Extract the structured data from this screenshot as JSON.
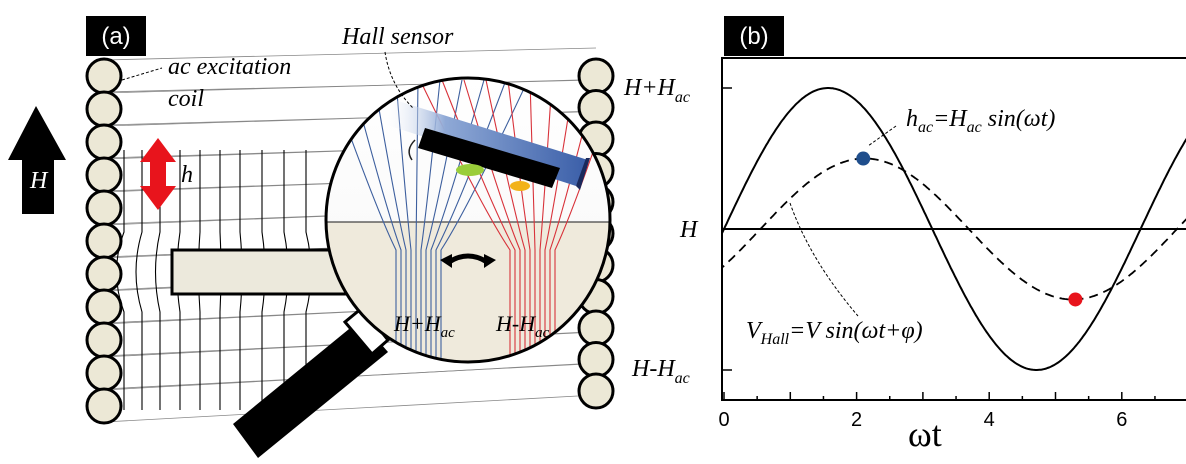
{
  "panel_a": {
    "label": "(a)",
    "coil_label_line1": "ac excitation",
    "coil_label_line2": "coil",
    "hall_sensor_label": "Hall sensor",
    "field_arrow_label": "H",
    "h_arrow_label": "h",
    "lens_label_plus": {
      "base": "H+H",
      "sub": "ac"
    },
    "lens_label_minus": {
      "base": "H-H",
      "sub": "ac"
    }
  },
  "panel_b": {
    "label": "(b)",
    "y_labels": {
      "top": {
        "base": "H+H",
        "sub": "ac"
      },
      "mid": "H",
      "bottom": {
        "base": "H-H",
        "sub": "ac"
      }
    },
    "x_axis_label": "ωt",
    "x_tick_labels": [
      "0",
      "2",
      "4",
      "6"
    ],
    "annotation_h": {
      "h": "h",
      "h_sub": "ac",
      "eq": "=H",
      "eq_sub": "ac",
      "rest": " sin(ωt)"
    },
    "annotation_v": {
      "v": "V",
      "v_sub": "Hall",
      "rest": "=V sin(ωt+φ)"
    },
    "colors": {
      "blue_dot": "#1f4e8c",
      "red_dot": "#e8141c"
    }
  },
  "chart_data": {
    "type": "line",
    "xlabel": "ωt",
    "ylabel": "",
    "xlim": [
      0,
      7
    ],
    "x_ticks": [
      0,
      2,
      4,
      6
    ],
    "series": [
      {
        "name": "h_ac=H_ac sin(ωt)",
        "style": "solid",
        "amplitude": 1.0,
        "phase": 0
      },
      {
        "name": "V_Hall=V sin(ωt+φ)",
        "style": "dashed",
        "amplitude": 0.5,
        "phase": -0.55
      }
    ],
    "markers": [
      {
        "x": 2.1,
        "color": "#1f4e8c"
      },
      {
        "x": 5.3,
        "color": "#e8141c"
      }
    ]
  }
}
